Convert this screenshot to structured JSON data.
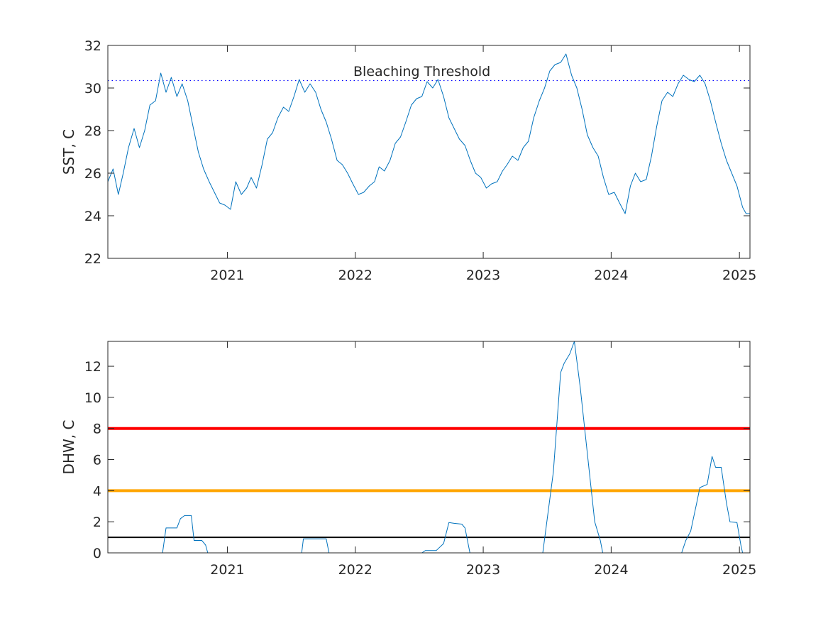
{
  "figure": {
    "background": "#ffffff"
  },
  "chart_data": [
    {
      "type": "line",
      "panel": "top",
      "title": "",
      "xlabel": "",
      "ylabel": "SST, C",
      "x_axis": "date",
      "xlim": [
        "2020-01-26",
        "2025-01-31"
      ],
      "ylim": [
        22,
        32
      ],
      "xticks": [
        "2021-01-01",
        "2022-01-01",
        "2023-01-01",
        "2024-01-01",
        "2025-01-01"
      ],
      "xtick_labels": [
        "2021",
        "2022",
        "2023",
        "2024",
        "2025"
      ],
      "yticks": [
        22,
        24,
        26,
        28,
        30,
        32
      ],
      "ytick_labels": [
        "22",
        "24",
        "26",
        "28",
        "30",
        "32"
      ],
      "grid": false,
      "box": true,
      "series": [
        {
          "color": "#0072bd",
          "line_width": 1,
          "points": [
            [
              "2020-01-26",
              25.6
            ],
            [
              "2020-02-10",
              26.2
            ],
            [
              "2020-02-25",
              25.0
            ],
            [
              "2020-03-10",
              26.0
            ],
            [
              "2020-03-25",
              27.2
            ],
            [
              "2020-04-10",
              28.1
            ],
            [
              "2020-04-25",
              27.2
            ],
            [
              "2020-05-10",
              28.0
            ],
            [
              "2020-05-25",
              29.2
            ],
            [
              "2020-06-10",
              29.4
            ],
            [
              "2020-06-25",
              30.7
            ],
            [
              "2020-07-10",
              29.8
            ],
            [
              "2020-07-25",
              30.5
            ],
            [
              "2020-08-10",
              29.6
            ],
            [
              "2020-08-25",
              30.2
            ],
            [
              "2020-09-10",
              29.4
            ],
            [
              "2020-09-25",
              28.2
            ],
            [
              "2020-10-10",
              27.0
            ],
            [
              "2020-10-25",
              26.2
            ],
            [
              "2020-11-10",
              25.6
            ],
            [
              "2020-11-25",
              25.1
            ],
            [
              "2020-12-10",
              24.6
            ],
            [
              "2020-12-25",
              24.5
            ],
            [
              "2021-01-10",
              24.3
            ],
            [
              "2021-01-25",
              25.6
            ],
            [
              "2021-02-10",
              25.0
            ],
            [
              "2021-02-25",
              25.3
            ],
            [
              "2021-03-10",
              25.8
            ],
            [
              "2021-03-25",
              25.3
            ],
            [
              "2021-04-10",
              26.4
            ],
            [
              "2021-04-25",
              27.6
            ],
            [
              "2021-05-10",
              27.9
            ],
            [
              "2021-05-25",
              28.6
            ],
            [
              "2021-06-10",
              29.1
            ],
            [
              "2021-06-25",
              28.9
            ],
            [
              "2021-07-10",
              29.6
            ],
            [
              "2021-07-25",
              30.4
            ],
            [
              "2021-08-10",
              29.8
            ],
            [
              "2021-08-25",
              30.2
            ],
            [
              "2021-09-10",
              29.8
            ],
            [
              "2021-09-25",
              29.0
            ],
            [
              "2021-10-10",
              28.4
            ],
            [
              "2021-10-25",
              27.6
            ],
            [
              "2021-11-10",
              26.6
            ],
            [
              "2021-11-25",
              26.4
            ],
            [
              "2021-12-10",
              26.0
            ],
            [
              "2021-12-25",
              25.5
            ],
            [
              "2022-01-10",
              25.0
            ],
            [
              "2022-01-25",
              25.1
            ],
            [
              "2022-02-10",
              25.4
            ],
            [
              "2022-02-25",
              25.6
            ],
            [
              "2022-03-10",
              26.3
            ],
            [
              "2022-03-25",
              26.1
            ],
            [
              "2022-04-10",
              26.6
            ],
            [
              "2022-04-25",
              27.4
            ],
            [
              "2022-05-10",
              27.7
            ],
            [
              "2022-05-25",
              28.4
            ],
            [
              "2022-06-10",
              29.2
            ],
            [
              "2022-06-25",
              29.5
            ],
            [
              "2022-07-10",
              29.6
            ],
            [
              "2022-07-25",
              30.3
            ],
            [
              "2022-08-10",
              30.0
            ],
            [
              "2022-08-25",
              30.4
            ],
            [
              "2022-09-10",
              29.6
            ],
            [
              "2022-09-25",
              28.6
            ],
            [
              "2022-10-10",
              28.1
            ],
            [
              "2022-10-25",
              27.6
            ],
            [
              "2022-11-10",
              27.3
            ],
            [
              "2022-11-25",
              26.6
            ],
            [
              "2022-12-10",
              26.0
            ],
            [
              "2022-12-25",
              25.8
            ],
            [
              "2023-01-10",
              25.3
            ],
            [
              "2023-01-25",
              25.5
            ],
            [
              "2023-02-10",
              25.6
            ],
            [
              "2023-02-25",
              26.1
            ],
            [
              "2023-03-10",
              26.4
            ],
            [
              "2023-03-25",
              26.8
            ],
            [
              "2023-04-10",
              26.6
            ],
            [
              "2023-04-25",
              27.2
            ],
            [
              "2023-05-10",
              27.5
            ],
            [
              "2023-05-25",
              28.6
            ],
            [
              "2023-06-10",
              29.4
            ],
            [
              "2023-06-25",
              30.0
            ],
            [
              "2023-07-10",
              30.8
            ],
            [
              "2023-07-25",
              31.1
            ],
            [
              "2023-08-10",
              31.2
            ],
            [
              "2023-08-25",
              31.6
            ],
            [
              "2023-09-10",
              30.6
            ],
            [
              "2023-09-25",
              30.0
            ],
            [
              "2023-10-10",
              29.0
            ],
            [
              "2023-10-25",
              27.8
            ],
            [
              "2023-11-10",
              27.2
            ],
            [
              "2023-11-25",
              26.8
            ],
            [
              "2023-12-10",
              25.8
            ],
            [
              "2023-12-25",
              25.0
            ],
            [
              "2024-01-10",
              25.1
            ],
            [
              "2024-01-25",
              24.6
            ],
            [
              "2024-02-10",
              24.1
            ],
            [
              "2024-02-25",
              25.4
            ],
            [
              "2024-03-10",
              26.0
            ],
            [
              "2024-03-25",
              25.6
            ],
            [
              "2024-04-10",
              25.7
            ],
            [
              "2024-04-25",
              26.8
            ],
            [
              "2024-05-10",
              28.2
            ],
            [
              "2024-05-25",
              29.4
            ],
            [
              "2024-06-10",
              29.8
            ],
            [
              "2024-06-25",
              29.6
            ],
            [
              "2024-07-10",
              30.2
            ],
            [
              "2024-07-25",
              30.6
            ],
            [
              "2024-08-10",
              30.4
            ],
            [
              "2024-08-25",
              30.3
            ],
            [
              "2024-09-10",
              30.6
            ],
            [
              "2024-09-25",
              30.2
            ],
            [
              "2024-10-10",
              29.4
            ],
            [
              "2024-10-25",
              28.4
            ],
            [
              "2024-11-10",
              27.4
            ],
            [
              "2024-11-25",
              26.6
            ],
            [
              "2024-12-10",
              26.0
            ],
            [
              "2024-12-25",
              25.4
            ],
            [
              "2025-01-10",
              24.4
            ],
            [
              "2025-01-20",
              24.1
            ],
            [
              "2025-01-31",
              24.1
            ]
          ]
        }
      ],
      "reference_lines": [
        {
          "y": 30.35,
          "style": "dotted",
          "color": "#0000ff",
          "label": "Bleaching Threshold"
        }
      ],
      "annotations": [
        {
          "text": "Bleaching Threshold",
          "x": "2022-07-10",
          "y": 30.8
        }
      ]
    },
    {
      "type": "line",
      "panel": "bottom",
      "title": "",
      "xlabel": "",
      "ylabel": "DHW, C",
      "x_axis": "date",
      "xlim": [
        "2020-01-26",
        "2025-01-31"
      ],
      "ylim": [
        0,
        13.6
      ],
      "xticks": [
        "2021-01-01",
        "2022-01-01",
        "2023-01-01",
        "2024-01-01",
        "2025-01-01"
      ],
      "xtick_labels": [
        "2021",
        "2022",
        "2023",
        "2024",
        "2025"
      ],
      "yticks": [
        0,
        2,
        4,
        6,
        8,
        10,
        12
      ],
      "ytick_labels": [
        "0",
        "2",
        "4",
        "6",
        "8",
        "10",
        "12"
      ],
      "grid": false,
      "box": true,
      "series": [
        {
          "color": "#0072bd",
          "line_width": 1,
          "points": [
            [
              "2020-01-26",
              0
            ],
            [
              "2020-06-30",
              0
            ],
            [
              "2020-07-10",
              1.6
            ],
            [
              "2020-08-10",
              1.6
            ],
            [
              "2020-08-20",
              2.2
            ],
            [
              "2020-09-01",
              2.4
            ],
            [
              "2020-09-20",
              2.4
            ],
            [
              "2020-09-28",
              0.8
            ],
            [
              "2020-10-20",
              0.8
            ],
            [
              "2020-10-31",
              0.5
            ],
            [
              "2020-11-06",
              0
            ],
            [
              "2021-08-01",
              0
            ],
            [
              "2021-08-06",
              0.9
            ],
            [
              "2021-10-10",
              0.9
            ],
            [
              "2021-10-18",
              0
            ],
            [
              "2022-07-10",
              0
            ],
            [
              "2022-07-20",
              0.15
            ],
            [
              "2022-08-20",
              0.15
            ],
            [
              "2022-09-10",
              0.6
            ],
            [
              "2022-09-25",
              1.95
            ],
            [
              "2022-10-10",
              1.9
            ],
            [
              "2022-11-01",
              1.85
            ],
            [
              "2022-11-10",
              1.6
            ],
            [
              "2022-11-24",
              0
            ],
            [
              "2023-06-20",
              0
            ],
            [
              "2023-07-20",
              5.2
            ],
            [
              "2023-08-10",
              11.6
            ],
            [
              "2023-08-20",
              12.2
            ],
            [
              "2023-09-05",
              12.8
            ],
            [
              "2023-09-18",
              13.6
            ],
            [
              "2023-10-05",
              10.6
            ],
            [
              "2023-10-25",
              6.4
            ],
            [
              "2023-11-15",
              2.0
            ],
            [
              "2023-12-01",
              0.8
            ],
            [
              "2023-12-08",
              0
            ],
            [
              "2024-07-20",
              0
            ],
            [
              "2024-08-01",
              0.8
            ],
            [
              "2024-08-15",
              1.4
            ],
            [
              "2024-09-01",
              3.2
            ],
            [
              "2024-09-10",
              4.2
            ],
            [
              "2024-10-01",
              4.4
            ],
            [
              "2024-10-15",
              6.2
            ],
            [
              "2024-10-25",
              5.5
            ],
            [
              "2024-11-10",
              5.5
            ],
            [
              "2024-11-25",
              3.2
            ],
            [
              "2024-12-05",
              2.0
            ],
            [
              "2024-12-25",
              1.95
            ],
            [
              "2025-01-05",
              0.5
            ],
            [
              "2025-01-10",
              0
            ],
            [
              "2025-01-31",
              0
            ]
          ]
        }
      ],
      "reference_lines": [
        {
          "y": 8,
          "style": "solid",
          "color": "#ff0000",
          "width": 4
        },
        {
          "y": 4,
          "style": "solid",
          "color": "#ffa500",
          "width": 4
        },
        {
          "y": 1,
          "style": "solid",
          "color": "#000000",
          "width": 2
        }
      ]
    }
  ]
}
